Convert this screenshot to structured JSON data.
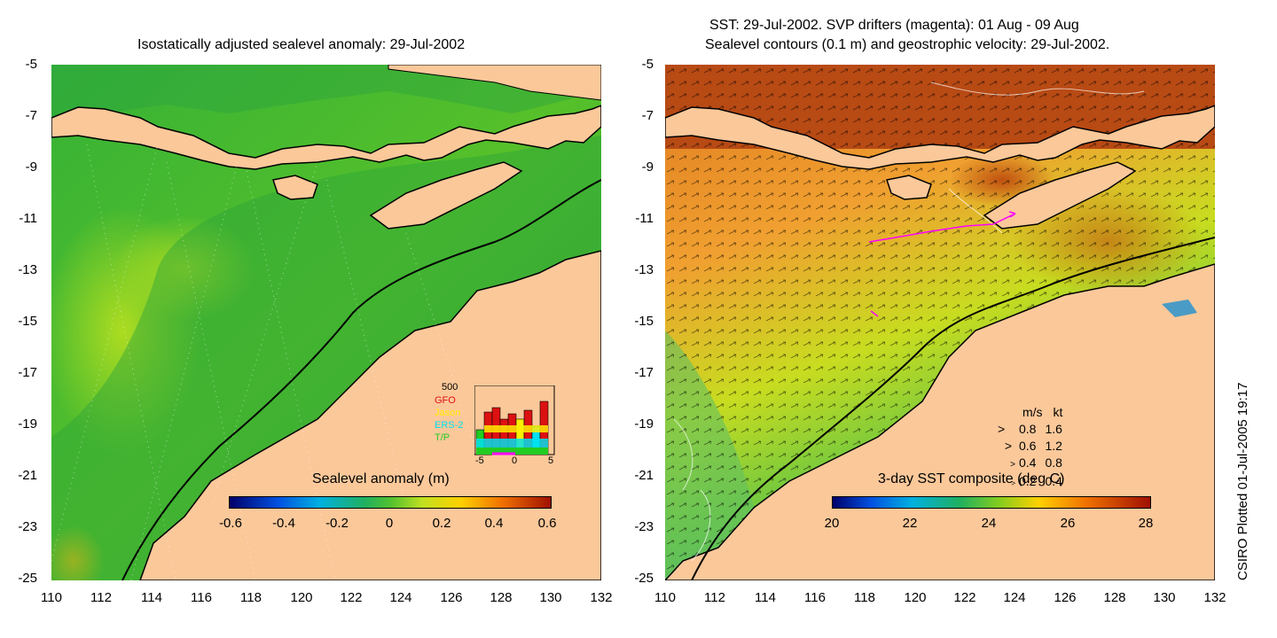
{
  "left_panel": {
    "title": "Isostatically adjusted sealevel anomaly: 29-Jul-2002",
    "colorbar": {
      "label": "Sealevel anomaly (m)",
      "ticks": [
        "-0.6",
        "-0.4",
        "-0.2",
        "0",
        "0.2",
        "0.4",
        "0.6"
      ]
    },
    "histogram": {
      "max_label": "500",
      "legend": [
        {
          "name": "GFO",
          "color": "#dd1111"
        },
        {
          "name": "Jason",
          "color": "#ffee00"
        },
        {
          "name": "ERS-2",
          "color": "#00e0f0"
        },
        {
          "name": "T/P",
          "color": "#22cc22"
        }
      ],
      "x_ticks": [
        "-5",
        "0",
        "5"
      ]
    }
  },
  "right_panel": {
    "title_line1": "SST: 29-Jul-2002. SVP drifters (magenta): 01 Aug - 09 Aug",
    "title_line2": "Sealevel contours (0.1 m) and geostrophic velocity: 29-Jul-2002.",
    "colorbar": {
      "label": "3-day SST composite (deg C)",
      "ticks": [
        "20",
        "22",
        "24",
        "26",
        "28"
      ]
    },
    "velocity_key": {
      "header_ms": "m/s",
      "header_kt": "kt",
      "rows": [
        {
          "ms": "0.8",
          "kt": "1.6"
        },
        {
          "ms": "0.6",
          "kt": "1.2"
        },
        {
          "ms": "0.4",
          "kt": "0.8"
        },
        {
          "ms": "0.2",
          "kt": "0.4"
        }
      ]
    }
  },
  "axes": {
    "lat_ticks": [
      "-5",
      "-7",
      "-9",
      "-11",
      "-13",
      "-15",
      "-17",
      "-19",
      "-21",
      "-23",
      "-25"
    ],
    "lon_ticks": [
      "110",
      "112",
      "114",
      "116",
      "118",
      "120",
      "122",
      "124",
      "126",
      "128",
      "130",
      "132"
    ]
  },
  "credit": "CSIRO Plotted 01-Jul-2005 19:17",
  "colors": {
    "land": "#fbc89a",
    "ocean_ssl": "#33b033",
    "sst_warm": "#e89028",
    "sst_hot": "#b04010"
  }
}
